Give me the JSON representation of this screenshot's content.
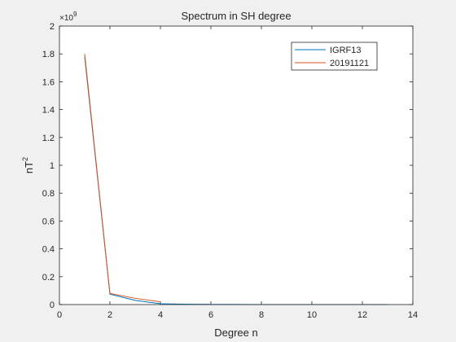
{
  "chart_data": {
    "type": "line",
    "title": "Spectrum in SH degree",
    "xlabel": "Degree n",
    "ylabel_base": "nT",
    "ylabel_sup": "2",
    "exponent_prefix": "×10",
    "exponent_power": "9",
    "xlim": [
      0,
      14
    ],
    "ylim": [
      0,
      2
    ],
    "xticks": [
      0,
      2,
      4,
      6,
      8,
      10,
      12,
      14
    ],
    "xtick_labels": [
      "0",
      "2",
      "4",
      "6",
      "8",
      "10",
      "12",
      "14"
    ],
    "yticks": [
      0,
      0.2,
      0.4,
      0.6,
      0.8,
      1,
      1.2,
      1.4,
      1.6,
      1.8,
      2
    ],
    "ytick_labels": [
      "0",
      "0.2",
      "0.4",
      "0.6",
      "0.8",
      "1",
      "1.2",
      "1.4",
      "1.6",
      "1.8",
      "2"
    ],
    "grid": false,
    "legend_position": "top-right",
    "series": [
      {
        "name": "IGRF13",
        "color": "#0072bd",
        "x": [
          1,
          2,
          3,
          4,
          5,
          6,
          7,
          8,
          9,
          10,
          11,
          12,
          13
        ],
        "y": [
          1.78,
          0.075,
          0.03,
          0.006,
          0.002,
          0.001,
          0.0005,
          0.0003,
          0.0002,
          0.0001,
          0.0001,
          5e-05,
          3e-05
        ]
      },
      {
        "name": "20191121",
        "color": "#d95319",
        "x": [
          1,
          2,
          3,
          4
        ],
        "y": [
          1.8,
          0.08,
          0.045,
          0.02
        ]
      }
    ]
  }
}
